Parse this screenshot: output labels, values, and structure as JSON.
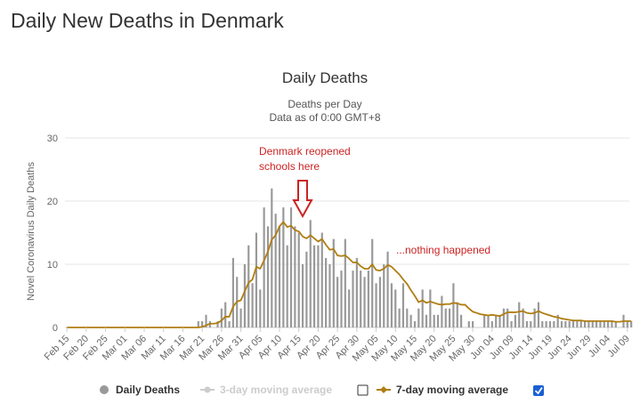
{
  "page_title": "Daily New Deaths in Denmark",
  "colors": {
    "bars": "#999999",
    "ma7": "#b07d12",
    "ma3_disabled": "#cccccc",
    "annotation": "#cc2222",
    "checkbox_on": "#1a5fd6"
  },
  "annotations": {
    "reopen_line1": "Denmark reopened",
    "reopen_line2": "schools here",
    "nothing": "...nothing happened"
  },
  "legend": {
    "daily": "Daily Deaths",
    "ma3": "3-day moving average",
    "ma3_checked": false,
    "ma7": "7-day moving average",
    "ma7_checked": true
  },
  "chart_data": {
    "type": "bar",
    "title": "Daily Deaths",
    "subtitle_line1": "Deaths per Day",
    "subtitle_line2": "Data as of 0:00 GMT+8",
    "ylabel": "Novel Coronavirus Daily Deaths",
    "xlabel": "",
    "ylim": [
      0,
      30
    ],
    "yticks": [
      0,
      10,
      20,
      30
    ],
    "grid": true,
    "start_date": "2020-02-15",
    "tick_every_days": 5,
    "xtick_labels": [
      "Feb 15",
      "Feb 20",
      "Feb 25",
      "Mar 01",
      "Mar 06",
      "Mar 11",
      "Mar 16",
      "Mar 21",
      "Mar 26",
      "Mar 31",
      "Apr 05",
      "Apr 10",
      "Apr 15",
      "Apr 20",
      "Apr 25",
      "Apr 30",
      "May 05",
      "May 10",
      "May 15",
      "May 20",
      "May 25",
      "May 30",
      "Jun 04",
      "Jun 09",
      "Jun 14",
      "Jun 19",
      "Jun 24",
      "Jun 29",
      "Jul 04",
      "Jul 09"
    ],
    "series": [
      {
        "name": "Daily Deaths",
        "type": "bar",
        "values": [
          0,
          0,
          0,
          0,
          0,
          0,
          0,
          0,
          0,
          0,
          0,
          0,
          0,
          0,
          0,
          0,
          0,
          0,
          0,
          0,
          0,
          0,
          0,
          0,
          0,
          0,
          0,
          0,
          0,
          0,
          0,
          0,
          0,
          0,
          1,
          1,
          2,
          1,
          0,
          1,
          3,
          4,
          1,
          11,
          8,
          3,
          10,
          13,
          7,
          15,
          6,
          19,
          16,
          22,
          18,
          16,
          19,
          13,
          19,
          16,
          15,
          10,
          12,
          17,
          13,
          13,
          15,
          11,
          10,
          14,
          8,
          9,
          14,
          6,
          9,
          11,
          9,
          8,
          9,
          14,
          7,
          8,
          10,
          12,
          7,
          6,
          3,
          7,
          3,
          2,
          1,
          3,
          6,
          2,
          6,
          2,
          2,
          5,
          3,
          3,
          7,
          4,
          2,
          0,
          1,
          1,
          0,
          0,
          2,
          2,
          1,
          2,
          2,
          3,
          3,
          1,
          2,
          4,
          3,
          1,
          1,
          3,
          4,
          1,
          1,
          1,
          1,
          2,
          1,
          1,
          1,
          1,
          1,
          1,
          1,
          1,
          1,
          1,
          1,
          1,
          1,
          1,
          1,
          0,
          2,
          1,
          1
        ]
      },
      {
        "name": "7-day moving average",
        "type": "line",
        "values": [
          0,
          0,
          0,
          0,
          0,
          0,
          0,
          0,
          0,
          0,
          0,
          0,
          0,
          0,
          0,
          0,
          0,
          0,
          0,
          0,
          0,
          0,
          0,
          0,
          0,
          0,
          0,
          0,
          0,
          0,
          0,
          0,
          0,
          0,
          0,
          0.1,
          0.3,
          0.6,
          0.6,
          0.7,
          1.1,
          1.7,
          1.7,
          3.3,
          4.1,
          4.3,
          5.7,
          7.1,
          7.6,
          9.6,
          9.3,
          10.6,
          12,
          13.9,
          14.6,
          16,
          16.7,
          15.9,
          16.1,
          15.4,
          15.2,
          14.4,
          14.1,
          14.6,
          14.1,
          13.6,
          14,
          13.1,
          12.3,
          12.4,
          11.4,
          11.3,
          11.4,
          10.9,
          10.3,
          10.3,
          9.7,
          9.3,
          9.3,
          10.0,
          9.1,
          9,
          9.3,
          9.9,
          9.6,
          9.0,
          8.4,
          7.6,
          6.9,
          5.9,
          5.0,
          4.0,
          4.3,
          3.9,
          4.1,
          3.9,
          3.7,
          3.6,
          3.7,
          3.7,
          3.9,
          3.8,
          3.6,
          3.6,
          3.0,
          2.5,
          2.3,
          2.1,
          2.0,
          1.9,
          2.0,
          1.9,
          1.8,
          2.1,
          2.4,
          2.4,
          2.4,
          2.5,
          2.6,
          2.3,
          2.2,
          2.3,
          2.6,
          2.3,
          2.1,
          1.9,
          1.7,
          1.6,
          1.4,
          1.3,
          1.2,
          1.1,
          1.1,
          1.1,
          1.0,
          1.0,
          1.0,
          1.0,
          1.0,
          1.0,
          1.0,
          1.0,
          0.9,
          0.9,
          1.0,
          1.0,
          1.0
        ]
      }
    ]
  }
}
